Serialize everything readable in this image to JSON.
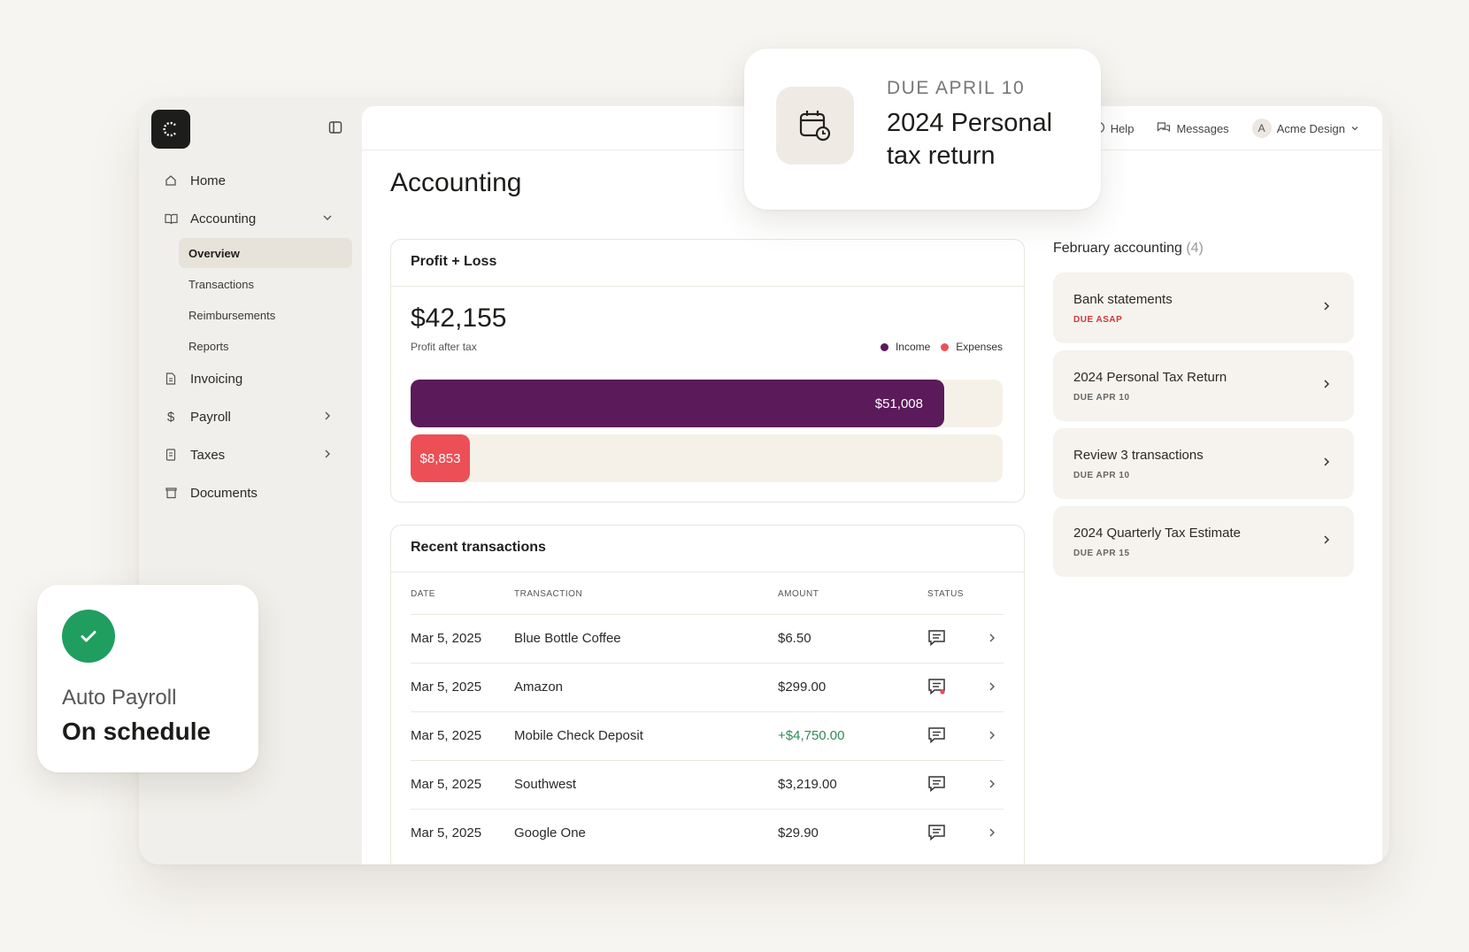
{
  "sidebar": {
    "nav": [
      {
        "label": "Home",
        "icon": "home-icon"
      },
      {
        "label": "Accounting",
        "icon": "book-icon"
      },
      {
        "label": "Invoicing",
        "icon": "invoice-icon"
      },
      {
        "label": "Payroll",
        "icon": "dollar-icon"
      },
      {
        "label": "Taxes",
        "icon": "receipt-icon"
      },
      {
        "label": "Documents",
        "icon": "trash-icon"
      }
    ],
    "sub": [
      "Overview",
      "Transactions",
      "Reimbursements",
      "Reports"
    ]
  },
  "topbar": {
    "help": "Help",
    "messages": "Messages",
    "avatar_letter": "A",
    "account": "Acme Design"
  },
  "page_title": "Accounting",
  "profit_loss": {
    "title": "Profit + Loss",
    "amount": "$42,155",
    "subtitle": "Profit after tax",
    "legend_income": "Income",
    "legend_expenses": "Expenses",
    "income_label": "$51,008",
    "expenses_label": "$8,853",
    "income_value": 51008,
    "expenses_value": 8853,
    "scale_max": 54000,
    "colors": {
      "income": "#5b1a5a",
      "expenses": "#ec4f55",
      "track": "#f6f1e8"
    }
  },
  "recent": {
    "title": "Recent transactions",
    "headers": {
      "date": "DATE",
      "transaction": "TRANSACTION",
      "amount": "AMOUNT",
      "status": "STATUS"
    },
    "rows": [
      {
        "date": "Mar 5, 2025",
        "name": "Blue Bottle Coffee",
        "amount": "$6.50"
      },
      {
        "date": "Mar 5, 2025",
        "name": "Amazon",
        "amount": "$299.00"
      },
      {
        "date": "Mar 5, 2025",
        "name": "Mobile Check Deposit",
        "amount": "+$4,750.00"
      },
      {
        "date": "Mar 5, 2025",
        "name": "Southwest",
        "amount": "$3,219.00"
      },
      {
        "date": "Mar 5, 2025",
        "name": "Google One",
        "amount": "$29.90"
      }
    ]
  },
  "february": {
    "title": "February accounting",
    "count": "(4)",
    "tasks": [
      {
        "name": "Bank statements",
        "due": "DUE ASAP"
      },
      {
        "name": "2024 Personal Tax Return",
        "due": "DUE APR 10"
      },
      {
        "name": "Review 3 transactions",
        "due": "DUE APR 10"
      },
      {
        "name": "2024 Quarterly Tax Estimate",
        "due": "DUE APR 15"
      }
    ]
  },
  "due_card": {
    "label": "DUE APRIL 10",
    "title": "2024 Personal tax return"
  },
  "payroll_card": {
    "label": "Auto Payroll",
    "status": "On schedule"
  }
}
